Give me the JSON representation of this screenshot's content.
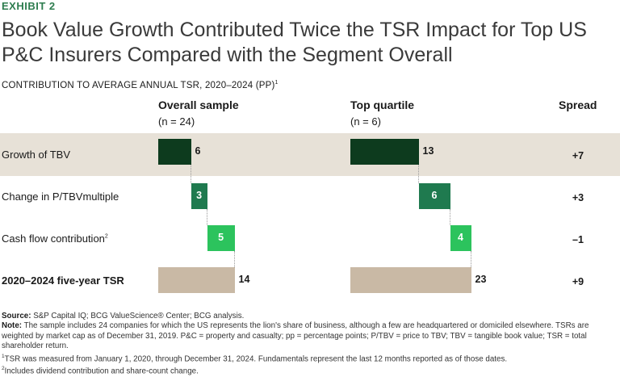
{
  "exhibit": "EXHIBIT 2",
  "title": "Book Value Growth Contributed Twice the TSR Impact for Top US P&C Insurers Compared with the Segment Overall",
  "subtitle": "CONTRIBUTION TO AVERAGE ANNUAL TSR, 2020–2024 (PP)",
  "subtitle_sup": "1",
  "columns": {
    "overall": {
      "title": "Overall sample",
      "n": "(n = 24)"
    },
    "top": {
      "title": "Top quartile",
      "n": "(n = 6)"
    },
    "spread": "Spread"
  },
  "rows": [
    {
      "label": "Growth of TBV",
      "sup": ""
    },
    {
      "label": "Change in P/TBVmultiple",
      "sup": ""
    },
    {
      "label": "Cash flow contribution",
      "sup": "2"
    },
    {
      "label": "2020–2024 five-year TSR",
      "sup": ""
    }
  ],
  "chart_data": {
    "type": "waterfall",
    "title": "Book Value Growth Contributed Twice the TSR Impact for Top US P&C Insurers Compared with the Segment Overall",
    "ylabel": "Contribution to average annual TSR, 2020–2024 (pp)",
    "categories": [
      "Growth of TBV",
      "Change in P/TBVmultiple",
      "Cash flow contribution",
      "2020–2024 five-year TSR"
    ],
    "series": [
      {
        "name": "Overall sample",
        "values": [
          6,
          3,
          5,
          14
        ],
        "labels": [
          "6",
          "3",
          "5",
          "14"
        ]
      },
      {
        "name": "Top quartile",
        "values": [
          13,
          6,
          4,
          23
        ],
        "labels": [
          "13",
          "6",
          "4",
          "23"
        ]
      }
    ],
    "spread": [
      "+7",
      "+3",
      "–1",
      "+9"
    ],
    "colors": [
      "#0d3b1e",
      "#1f7a4f",
      "#2cc35d",
      "#c9b9a5"
    ]
  },
  "footnotes": {
    "source_label": "Source:",
    "source": "S&P Capital IQ; BCG ValueScience® Center; BCG analysis.",
    "note_label": "Note:",
    "note": "The sample includes 24 companies for which the US represents the lion's share of business, although a few are headquartered or domiciled elsewhere. TSRs are weighted by market cap as of December 31, 2019. P&C = property and casualty; pp = percentage points; P/TBV = price to TBV; TBV = tangible book value; TSR = total shareholder return.",
    "fn1_mark": "1",
    "fn1": "TSR was measured from January 1, 2020, through December 31, 2024. Fundamentals represent the last 12 months reported as of those dates.",
    "fn2_mark": "2",
    "fn2": "Includes dividend contribution and share-count change."
  }
}
